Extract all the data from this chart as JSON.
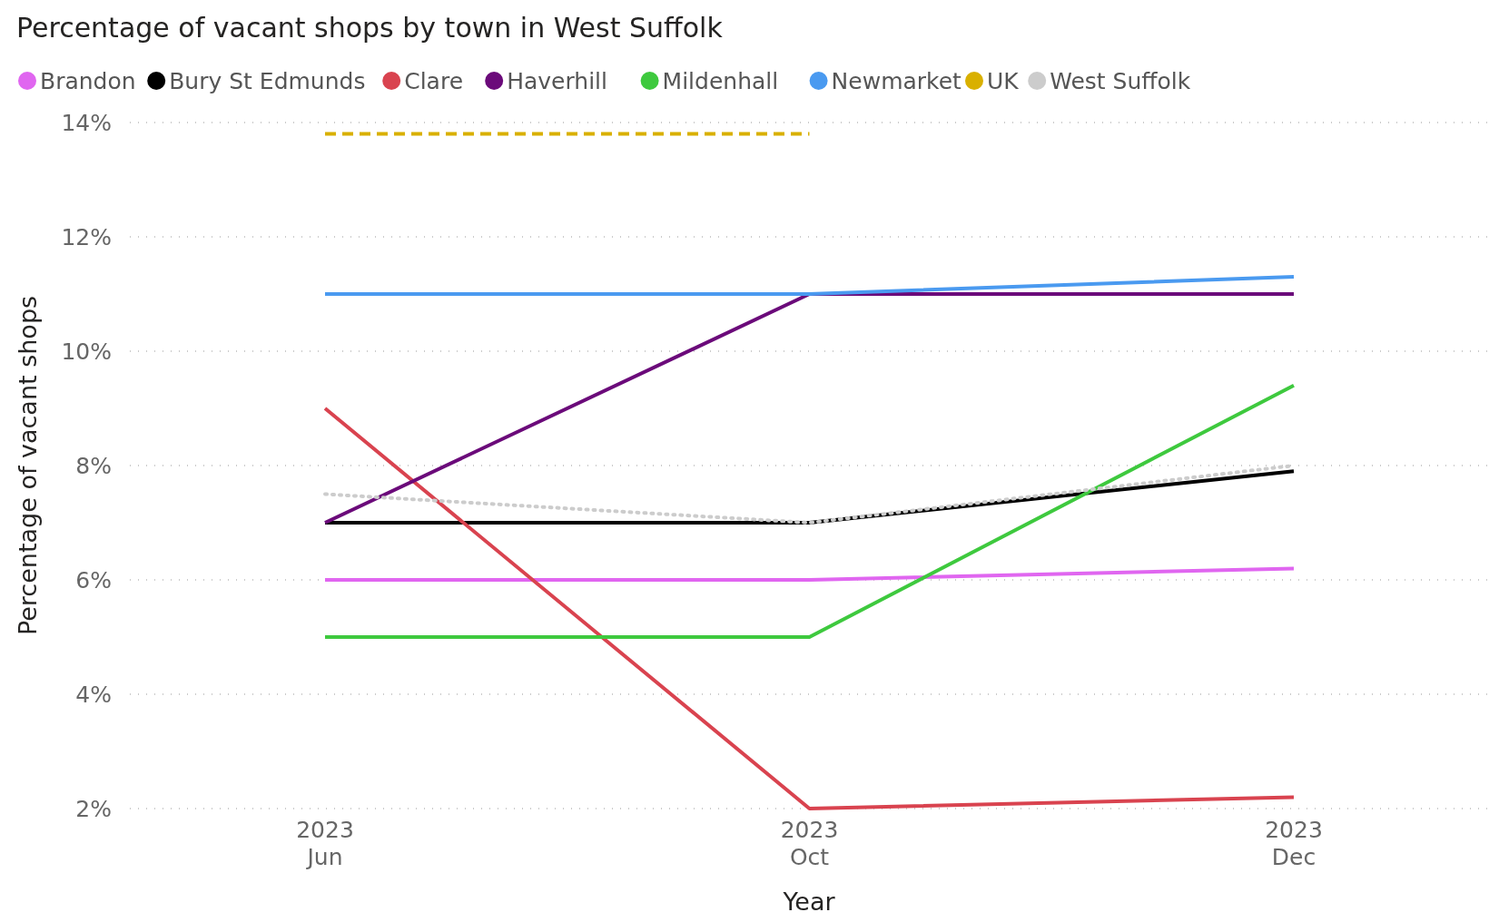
{
  "chart_data": {
    "type": "line",
    "title": "Percentage of vacant shops by town in West Suffolk",
    "xlabel": "Year",
    "ylabel": "Percentage of vacant shops",
    "categories": [
      "2023\nJun",
      "2023\nOct",
      "2023\nDec"
    ],
    "series": [
      {
        "name": "Brandon",
        "color": "#e066f0",
        "values": [
          6,
          6,
          6.2
        ]
      },
      {
        "name": "Bury St Edmunds",
        "color": "#000000",
        "values": [
          7,
          7,
          7.9
        ]
      },
      {
        "name": "Clare",
        "color": "#d9434f",
        "values": [
          9,
          2,
          2.2
        ]
      },
      {
        "name": "Haverhill",
        "color": "#6b0a7a",
        "values": [
          7,
          11,
          11
        ]
      },
      {
        "name": "Mildenhall",
        "color": "#3ec93e",
        "values": [
          5,
          5,
          9.4
        ]
      },
      {
        "name": "Newmarket",
        "color": "#4a9af0",
        "values": [
          11,
          11,
          11.3
        ]
      },
      {
        "name": "UK",
        "color": "#d9b000",
        "values": [
          13.8,
          13.8,
          null
        ],
        "line_style": "dashed"
      },
      {
        "name": "West Suffolk",
        "color": "#cccccc",
        "values": [
          7.5,
          7,
          8
        ],
        "line_style": "dotted"
      }
    ],
    "ylim": [
      2,
      14
    ],
    "yticks": [
      {
        "value": 2,
        "label": "2%"
      },
      {
        "value": 4,
        "label": "4%"
      },
      {
        "value": 6,
        "label": "6%"
      },
      {
        "value": 8,
        "label": "8%"
      },
      {
        "value": 10,
        "label": "10%"
      },
      {
        "value": 12,
        "label": "12%"
      },
      {
        "value": 14,
        "label": "14%"
      }
    ],
    "grid": "y",
    "legend": "top left",
    "marker": "none",
    "line_style": "solid"
  }
}
